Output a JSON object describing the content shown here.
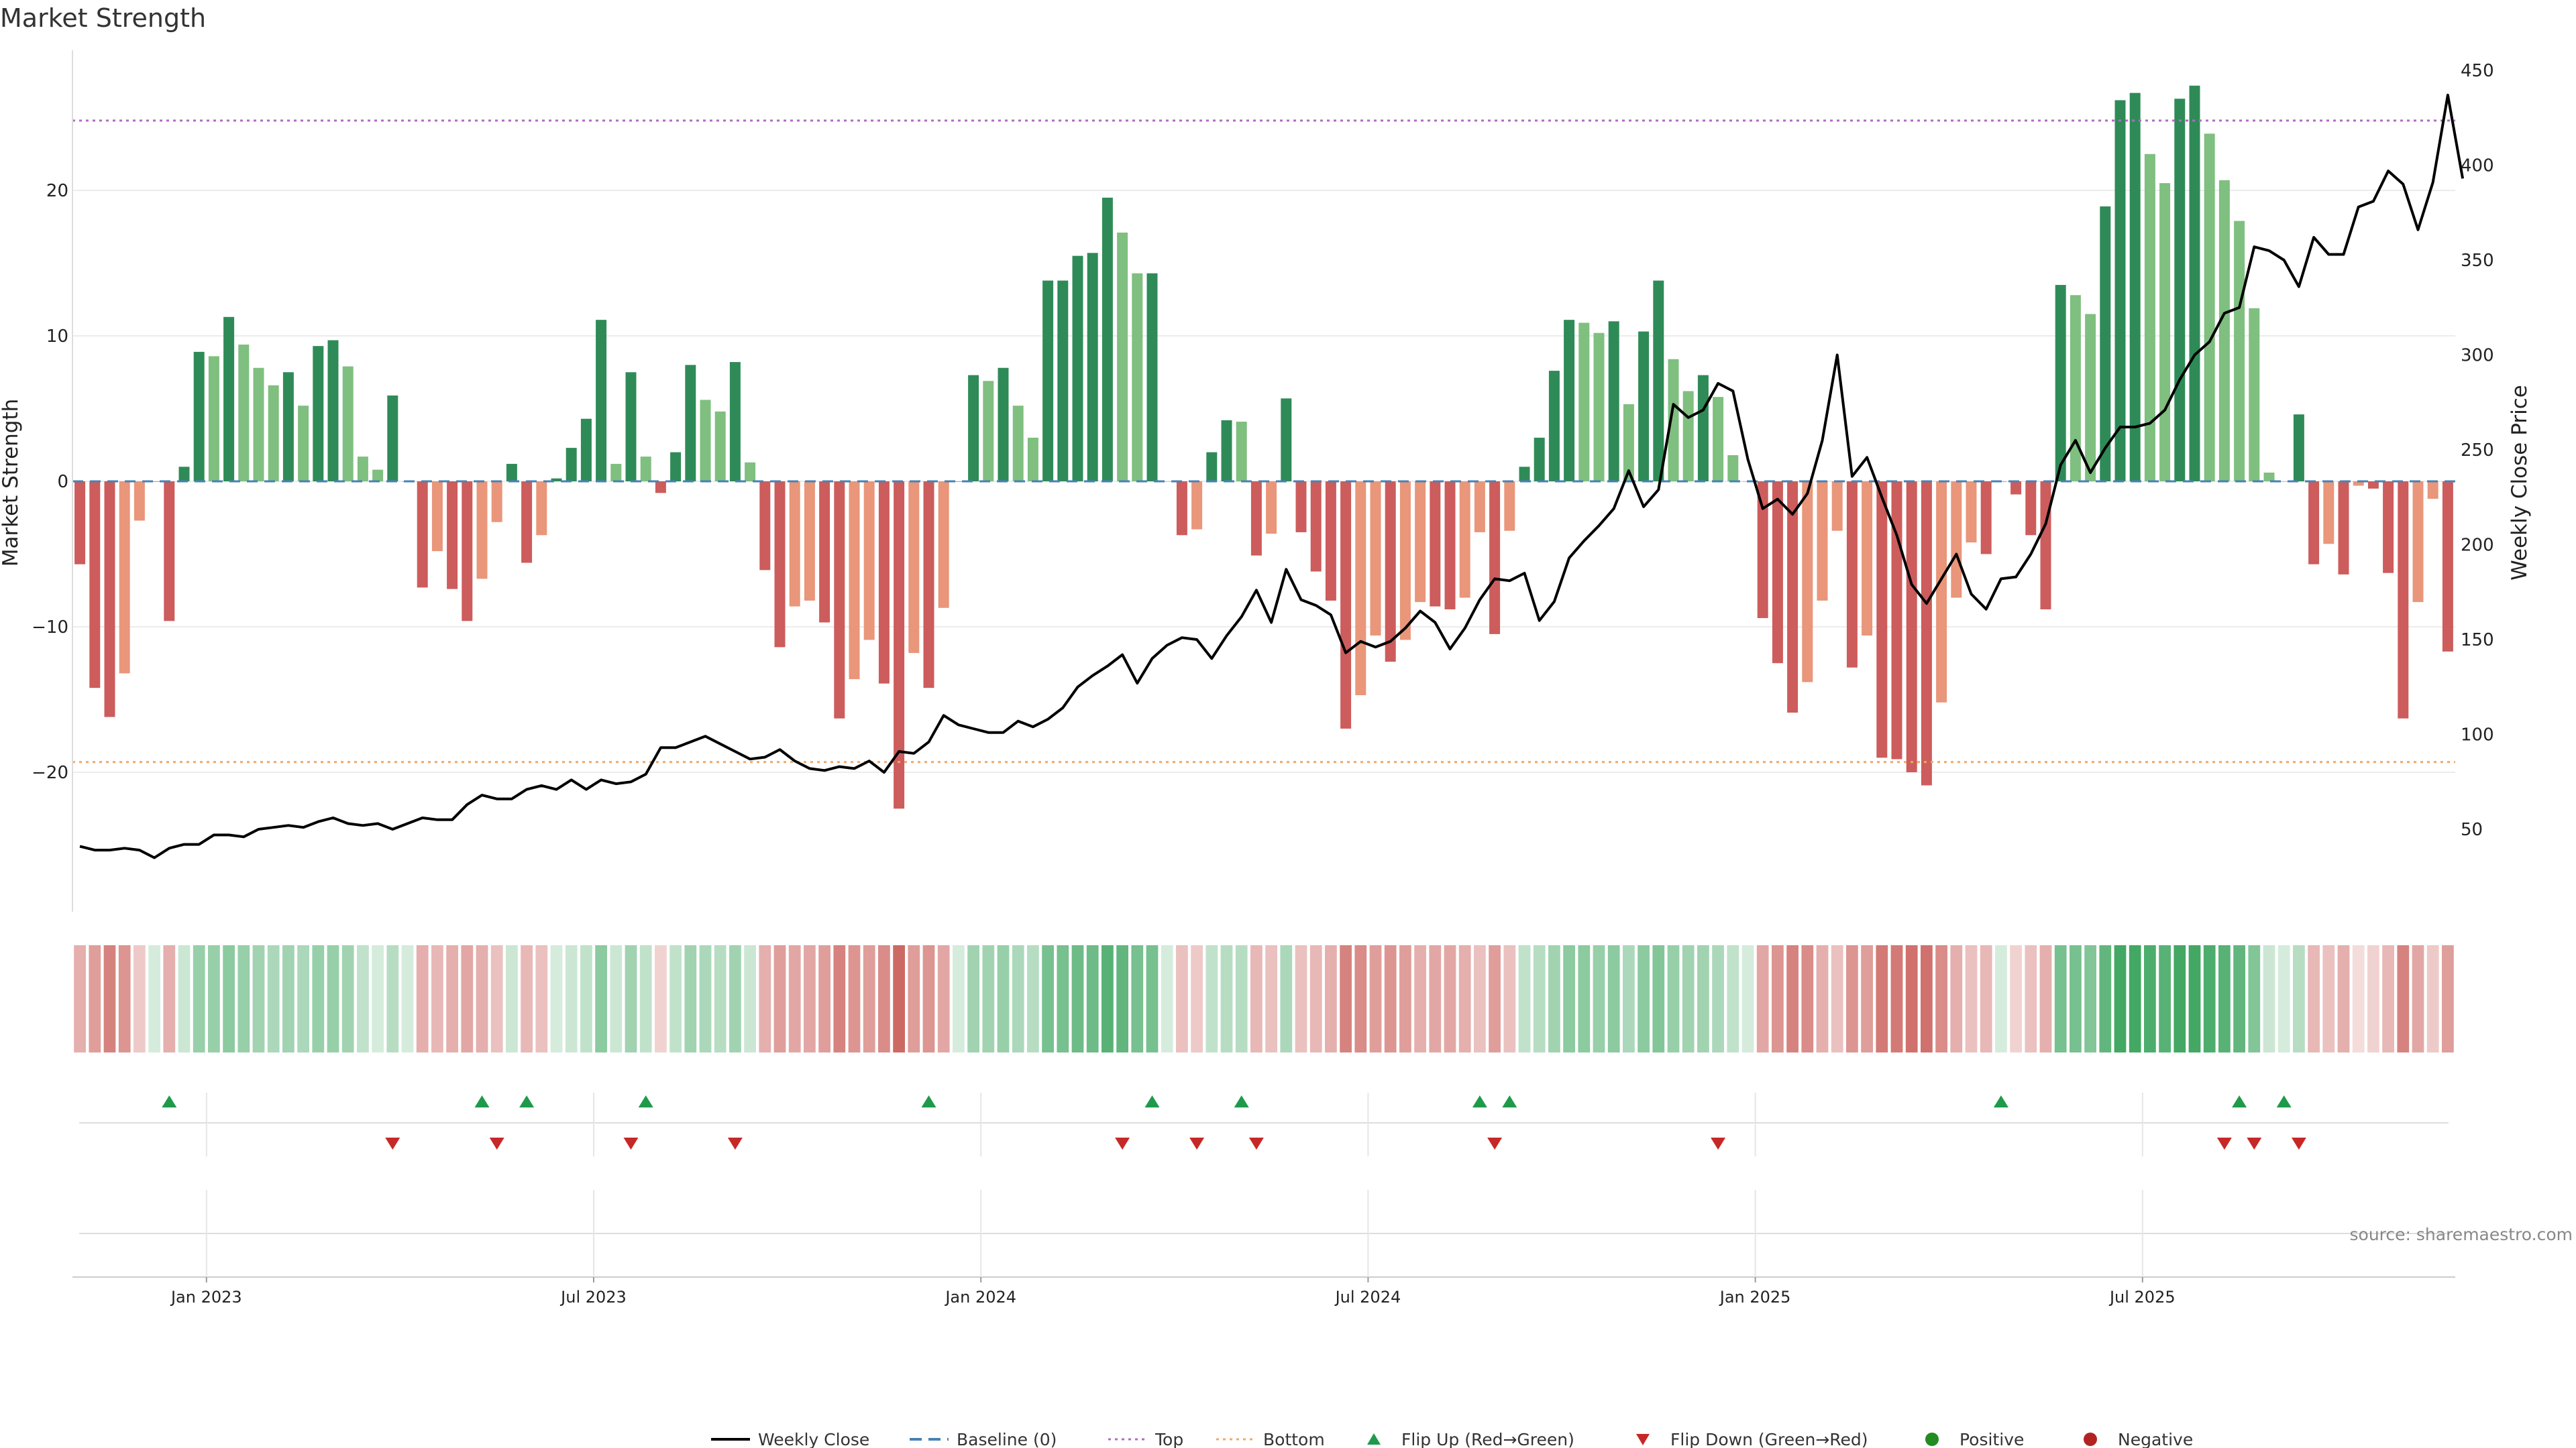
{
  "title": "Market Strength",
  "source": "source: sharemaestro.com",
  "colors": {
    "pos_strong": "#2e8b57",
    "pos_weak": "#7fbf7f",
    "neg_strong": "#cd5c5c",
    "neg_weak": "#e9967a",
    "price_line": "#000000",
    "baseline": "#4682b4",
    "top_line": "#b06cc0",
    "bottom_line": "#f0a868",
    "flip_up": "#1f9a4a",
    "flip_down": "#c62828",
    "positive_dot": "#228b22",
    "negative_dot": "#b22222"
  },
  "chart_data": {
    "type": "bar+line",
    "title": "Market Strength",
    "ylabel_left": "Market Strength",
    "ylabel_right": "Weekly Close Price",
    "y_left_ticks": [
      20,
      10,
      0,
      -10,
      -20
    ],
    "y_right_ticks": [
      450,
      400,
      350,
      300,
      250,
      200,
      150,
      100,
      50
    ],
    "ylim_left": [
      -29.5,
      29.5
    ],
    "ylim_right": [
      5,
      460
    ],
    "top_threshold": 24.8,
    "bottom_threshold": -19.3,
    "x_date_labels": [
      "Jan 2023",
      "Jul 2023",
      "Jan 2024",
      "Jul 2024",
      "Jan 2025",
      "Jul 2025"
    ],
    "x_date_label_weeks": [
      8.5,
      34.5,
      60.5,
      86.5,
      112.5,
      138.5
    ],
    "grid": true,
    "legend_position": "bottom",
    "strength": [
      -5.7,
      -14.2,
      -16.2,
      -13.2,
      -2.7,
      0,
      -9.6,
      1.0,
      8.9,
      8.6,
      11.3,
      9.4,
      7.8,
      6.6,
      7.5,
      5.2,
      9.3,
      9.7,
      7.9,
      1.7,
      0.8,
      5.9,
      0,
      -7.3,
      -4.8,
      -7.4,
      -9.6,
      -6.7,
      -2.8,
      1.2,
      -5.6,
      -3.7,
      0.2,
      2.3,
      4.3,
      11.1,
      1.2,
      7.5,
      1.7,
      -0.8,
      2.0,
      8.0,
      5.6,
      4.8,
      8.2,
      1.3,
      -6.1,
      -11.4,
      -8.6,
      -8.2,
      -9.7,
      -16.3,
      -13.6,
      -10.9,
      -13.9,
      -22.5,
      -11.8,
      -14.2,
      -8.7,
      0,
      7.3,
      6.9,
      7.8,
      5.2,
      3.0,
      13.8,
      13.8,
      15.5,
      15.7,
      19.5,
      17.1,
      14.3,
      14.3,
      0,
      -3.7,
      -3.3,
      2.0,
      4.2,
      4.1,
      -5.1,
      -3.6,
      5.7,
      -3.5,
      -6.2,
      -8.2,
      -17.0,
      -14.7,
      -10.6,
      -12.4,
      -10.9,
      -8.3,
      -8.6,
      -8.8,
      -8.0,
      -3.5,
      -10.5,
      -3.4,
      1.0,
      3.0,
      7.6,
      11.1,
      10.9,
      10.2,
      11.0,
      5.3,
      10.3,
      13.8,
      8.4,
      6.2,
      7.3,
      5.8,
      1.8,
      0,
      -9.4,
      -12.5,
      -15.9,
      -13.8,
      -8.2,
      -3.4,
      -12.8,
      -10.6,
      -19.0,
      -19.1,
      -20.0,
      -20.9,
      -15.2,
      -8.0,
      -4.2,
      -5.0,
      0,
      -0.9,
      -3.7,
      -8.8,
      13.5,
      12.8,
      11.5,
      18.9,
      26.2,
      26.7,
      22.5,
      20.5,
      26.3,
      27.2,
      23.9,
      20.7,
      17.9,
      11.9,
      0.6,
      0,
      4.6,
      -5.7,
      -4.3,
      -6.4,
      -0.3,
      -0.5,
      -6.3,
      -16.3,
      -8.3,
      -1.2,
      -11.7
    ],
    "weekly_close": [
      41,
      39,
      39,
      40,
      39,
      35,
      40,
      42,
      42,
      47,
      47,
      46,
      50,
      51,
      52,
      51,
      54,
      56,
      53,
      52,
      53,
      50,
      53,
      56,
      55,
      55,
      63,
      68,
      66,
      66,
      71,
      73,
      71,
      76,
      71,
      76,
      74,
      75,
      79,
      93,
      93,
      96,
      99,
      95,
      91,
      87,
      88,
      92,
      86,
      82,
      81,
      83,
      82,
      86,
      80,
      91,
      90,
      96,
      110,
      105,
      103,
      101,
      101,
      107,
      104,
      108,
      114,
      125,
      131,
      136,
      142,
      127,
      140,
      147,
      151,
      150,
      140,
      152,
      162,
      176,
      159,
      187,
      171,
      168,
      163,
      143,
      149,
      146,
      149,
      156,
      165,
      159,
      145,
      156,
      171,
      182,
      181,
      185,
      160,
      170,
      193,
      202,
      210,
      219,
      239,
      220,
      229,
      274,
      267,
      271,
      285,
      281,
      245,
      219,
      224,
      216,
      227,
      255,
      300,
      236,
      246,
      225,
      205,
      179,
      169,
      182,
      195,
      174,
      166,
      182,
      183,
      195,
      211,
      242,
      255,
      238,
      251,
      262,
      262,
      264,
      271,
      287,
      300,
      307,
      322,
      325,
      357,
      355,
      350,
      336,
      362,
      353,
      353,
      378,
      381,
      397,
      390,
      366,
      391,
      437,
      393
    ],
    "heat_intensity": [
      0.45,
      0.55,
      0.7,
      0.6,
      0.3,
      0.2,
      0.45,
      0.25,
      0.5,
      0.5,
      0.55,
      0.5,
      0.45,
      0.4,
      0.45,
      0.4,
      0.5,
      0.5,
      0.45,
      0.3,
      0.2,
      0.35,
      0.2,
      0.45,
      0.4,
      0.45,
      0.5,
      0.45,
      0.35,
      0.25,
      0.4,
      0.35,
      0.2,
      0.25,
      0.3,
      0.55,
      0.25,
      0.45,
      0.3,
      0.25,
      0.3,
      0.45,
      0.4,
      0.35,
      0.45,
      0.25,
      0.45,
      0.55,
      0.5,
      0.5,
      0.55,
      0.7,
      0.6,
      0.55,
      0.65,
      0.85,
      0.55,
      0.6,
      0.5,
      0.2,
      0.45,
      0.45,
      0.5,
      0.4,
      0.35,
      0.65,
      0.65,
      0.7,
      0.7,
      0.8,
      0.75,
      0.65,
      0.65,
      0.2,
      0.35,
      0.3,
      0.3,
      0.35,
      0.35,
      0.4,
      0.35,
      0.4,
      0.35,
      0.4,
      0.45,
      0.7,
      0.65,
      0.55,
      0.6,
      0.55,
      0.45,
      0.5,
      0.5,
      0.45,
      0.35,
      0.55,
      0.35,
      0.3,
      0.35,
      0.45,
      0.55,
      0.55,
      0.5,
      0.55,
      0.4,
      0.55,
      0.6,
      0.5,
      0.45,
      0.45,
      0.4,
      0.3,
      0.2,
      0.5,
      0.6,
      0.7,
      0.65,
      0.45,
      0.35,
      0.6,
      0.55,
      0.75,
      0.75,
      0.8,
      0.8,
      0.65,
      0.45,
      0.35,
      0.4,
      0.2,
      0.25,
      0.35,
      0.45,
      0.65,
      0.65,
      0.6,
      0.75,
      0.9,
      0.9,
      0.85,
      0.8,
      0.9,
      0.9,
      0.85,
      0.8,
      0.75,
      0.6,
      0.25,
      0.2,
      0.35,
      0.4,
      0.35,
      0.45,
      0.2,
      0.25,
      0.4,
      0.7,
      0.5,
      0.3,
      0.55
    ],
    "flip_up_weeks": [
      6,
      27,
      30,
      38,
      57,
      72,
      78,
      94,
      96,
      129,
      145,
      148
    ],
    "flip_down_weeks": [
      21,
      28,
      37,
      44,
      70,
      75,
      79,
      95,
      110,
      144,
      146,
      149
    ],
    "legend": [
      "Weekly Close",
      "Baseline (0)",
      "Top",
      "Bottom",
      "Flip Up (Red→Green)",
      "Flip Down (Green→Red)",
      "Positive",
      "Negative"
    ]
  }
}
